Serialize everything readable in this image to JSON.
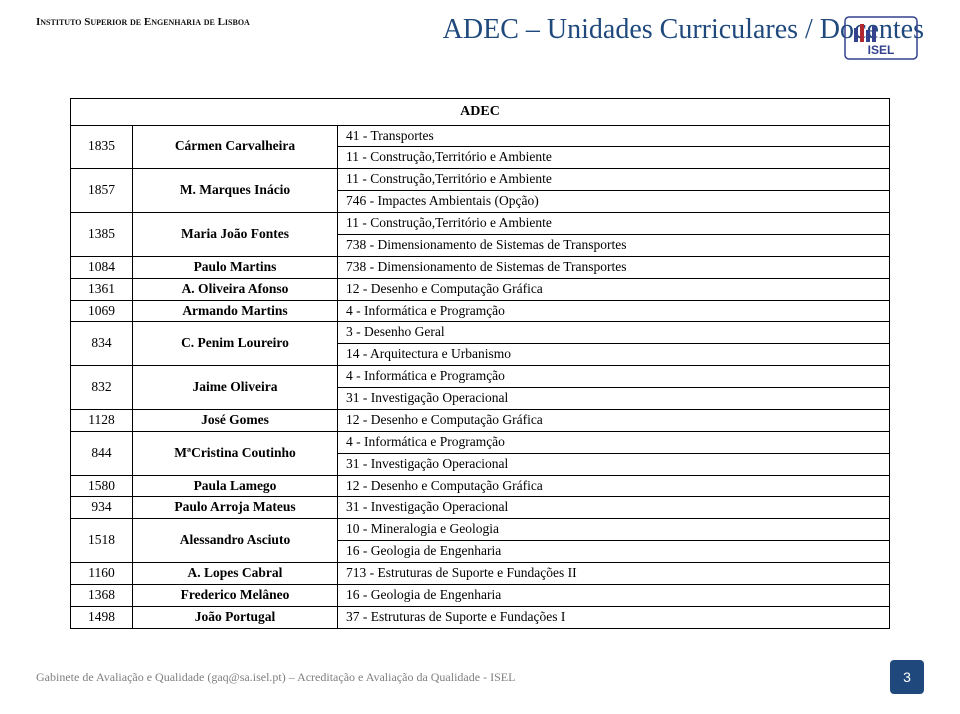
{
  "header": {
    "institution": "Instituto Superior de Engenharia de Lisboa",
    "title": "ADEC – Unidades Curriculares / Docentes",
    "logo_text": "ISEL",
    "logo_primary": "#33418e",
    "logo_accent": "#b1272d"
  },
  "table": {
    "heading": "ADEC",
    "rows": [
      {
        "id": "1835",
        "name": "Cármen Carvalheira",
        "courses": [
          "41 - Transportes",
          "11 - Construção,Território e Ambiente"
        ]
      },
      {
        "id": "1857",
        "name": "M. Marques Inácio",
        "courses": [
          "11 - Construção,Território e Ambiente",
          "746 - Impactes Ambientais (Opção)"
        ]
      },
      {
        "id": "1385",
        "name": "Maria João Fontes",
        "courses": [
          "11 - Construção,Território e Ambiente",
          "738 - Dimensionamento de Sistemas de Transportes"
        ]
      },
      {
        "id": "1084",
        "name": "Paulo  Martins",
        "courses": [
          "738 - Dimensionamento de Sistemas de Transportes"
        ]
      },
      {
        "id": "1361",
        "name": "A. Oliveira Afonso",
        "courses": [
          "12 - Desenho e Computação Gráfica"
        ]
      },
      {
        "id": "1069",
        "name": "Armando Martins",
        "courses": [
          "4 - Informática e Programção"
        ]
      },
      {
        "id": "834",
        "name": "C. Penim Loureiro",
        "courses": [
          "3 - Desenho Geral",
          "14 - Arquitectura e Urbanismo"
        ]
      },
      {
        "id": "832",
        "name": "Jaime Oliveira",
        "courses": [
          "4 - Informática e Programção",
          "31 - Investigação Operacional"
        ]
      },
      {
        "id": "1128",
        "name": "José Gomes",
        "courses": [
          "12 - Desenho e Computação Gráfica"
        ]
      },
      {
        "id": "844",
        "name": "MªCristina  Coutinho",
        "courses": [
          "4 - Informática e Programção",
          "31 - Investigação Operacional"
        ]
      },
      {
        "id": "1580",
        "name": "Paula Lamego",
        "courses": [
          "12 - Desenho e Computação Gráfica"
        ]
      },
      {
        "id": "934",
        "name": "Paulo Arroja Mateus",
        "courses": [
          "31 - Investigação Operacional"
        ]
      },
      {
        "id": "1518",
        "name": "Alessandro Asciuto",
        "courses": [
          "10 - Mineralogia e Geologia",
          "16 - Geologia de Engenharia"
        ]
      },
      {
        "id": "1160",
        "name": "A. Lopes Cabral",
        "courses": [
          "713 - Estruturas de Suporte e Fundações II"
        ]
      },
      {
        "id": "1368",
        "name": "Frederico  Melâneo",
        "courses": [
          "16 - Geologia de Engenharia"
        ]
      },
      {
        "id": "1498",
        "name": "João Portugal",
        "courses": [
          "37 - Estruturas de Suporte e Fundações I"
        ]
      }
    ]
  },
  "footer": {
    "text": "Gabinete de Avaliação e Qualidade (gaq@sa.isel.pt) – Acreditação e Avaliação da Qualidade - ISEL",
    "page": "3"
  },
  "styles": {
    "title_color": "#1f497d",
    "footer_color": "#7f7f7f",
    "badge_bg": "#1f497d"
  }
}
